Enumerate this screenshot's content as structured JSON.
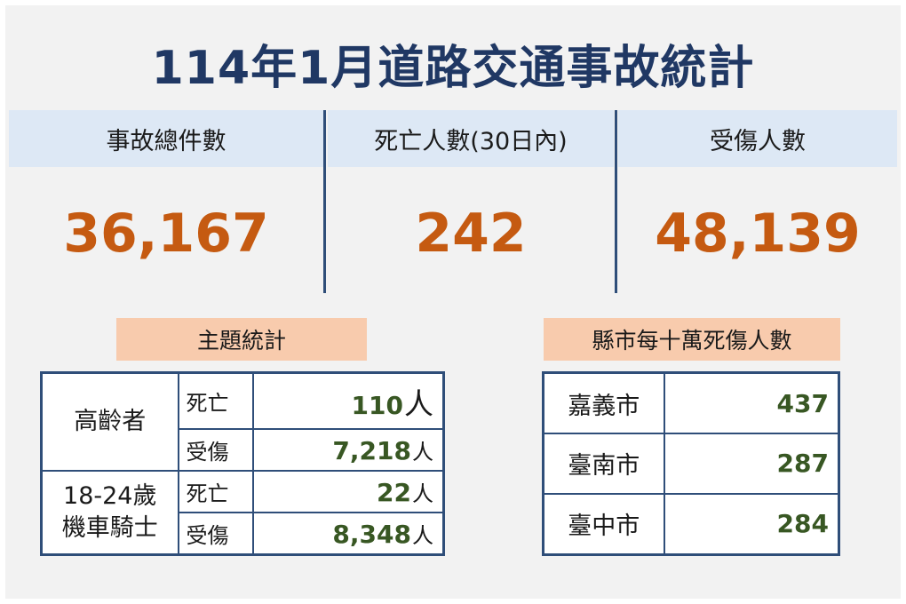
{
  "title": "114年1月道路交通事故統計",
  "stats": [
    {
      "label": "事故總件數",
      "value": "36,167"
    },
    {
      "label": "死亡人數(30日內)",
      "value": "242"
    },
    {
      "label": "受傷人數",
      "value": "48,139"
    }
  ],
  "topic": {
    "heading": "主題統計",
    "groups": [
      {
        "name_line1": "高齡者",
        "name_line2": "",
        "rows": [
          {
            "kind": "死亡",
            "value": "110",
            "unit": "人"
          },
          {
            "kind": "受傷",
            "value": "7,218",
            "unit": "人"
          }
        ]
      },
      {
        "name_line1": "18-24歲",
        "name_line2": "機車騎士",
        "rows": [
          {
            "kind": "死亡",
            "value": "22",
            "unit": "人"
          },
          {
            "kind": "受傷",
            "value": "8,348",
            "unit": "人"
          }
        ]
      }
    ]
  },
  "cities": {
    "heading": "縣市每十萬死傷人數",
    "rows": [
      {
        "name": "嘉義市",
        "value": "437"
      },
      {
        "name": "臺南市",
        "value": "287"
      },
      {
        "name": "臺中市",
        "value": "284"
      }
    ]
  },
  "colors": {
    "title": "#203864",
    "stat_band": "#dde8f5",
    "stat_value": "#c55a11",
    "section_label": "#f8cbad",
    "table_border": "#2f4e79",
    "table_value": "#385723"
  }
}
